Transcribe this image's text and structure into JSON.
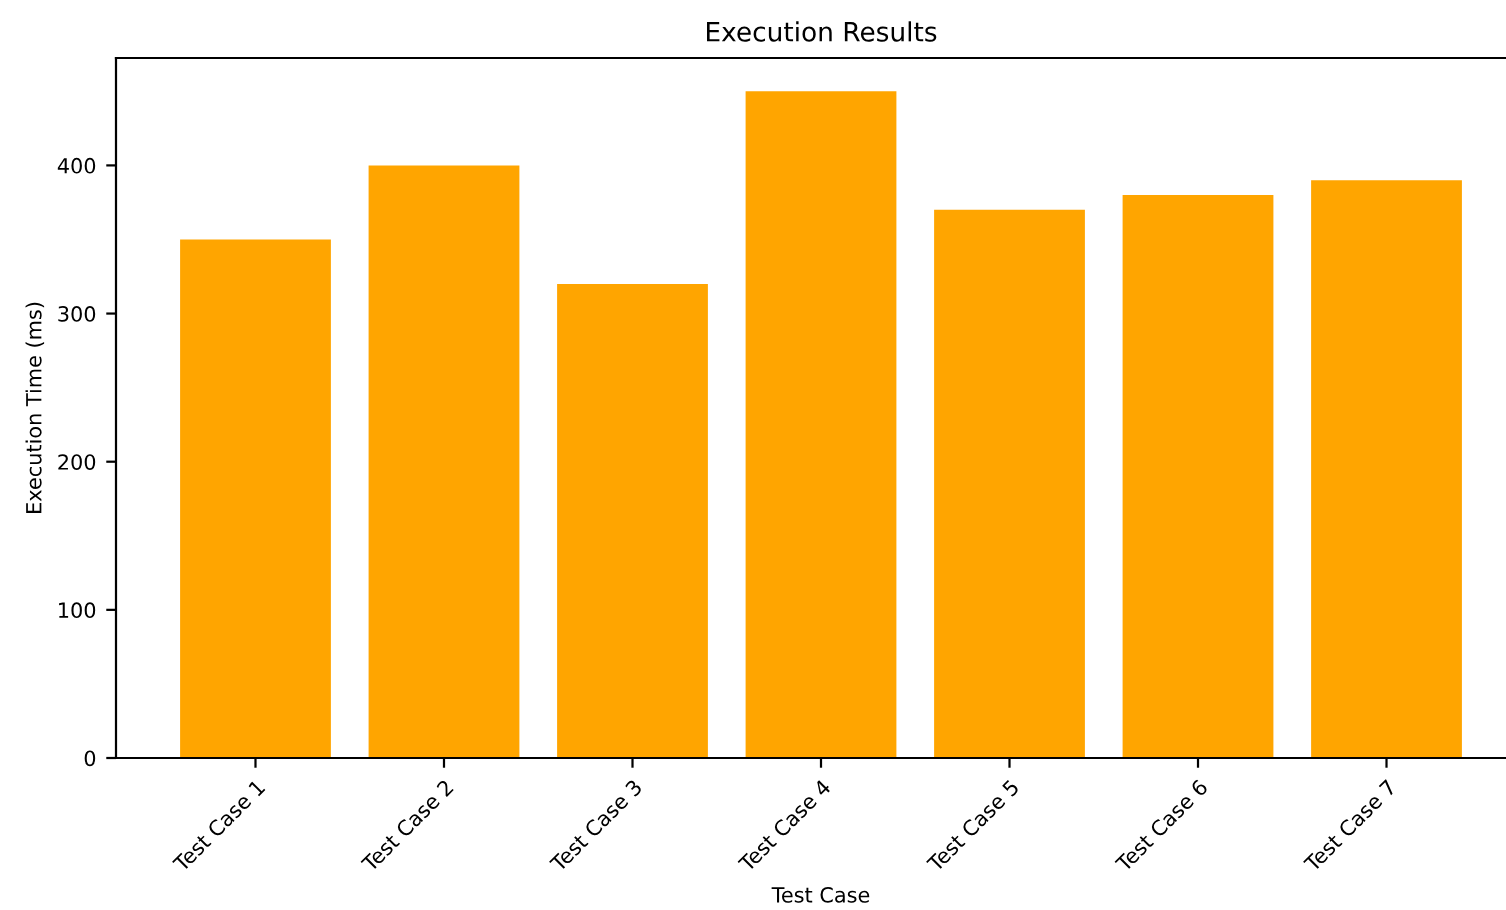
{
  "chart_data": {
    "type": "bar",
    "title": "Execution Results",
    "xlabel": "Test Case",
    "ylabel": "Execution Time (ms)",
    "categories": [
      "Test Case 1",
      "Test Case 2",
      "Test Case 3",
      "Test Case 4",
      "Test Case 5",
      "Test Case 6",
      "Test Case 7"
    ],
    "values": [
      350,
      400,
      320,
      450,
      370,
      380,
      390
    ],
    "color": "#ffa500",
    "ylim": [
      0,
      472.5
    ],
    "yticks": [
      0,
      100,
      200,
      300,
      400
    ],
    "grid": false
  }
}
